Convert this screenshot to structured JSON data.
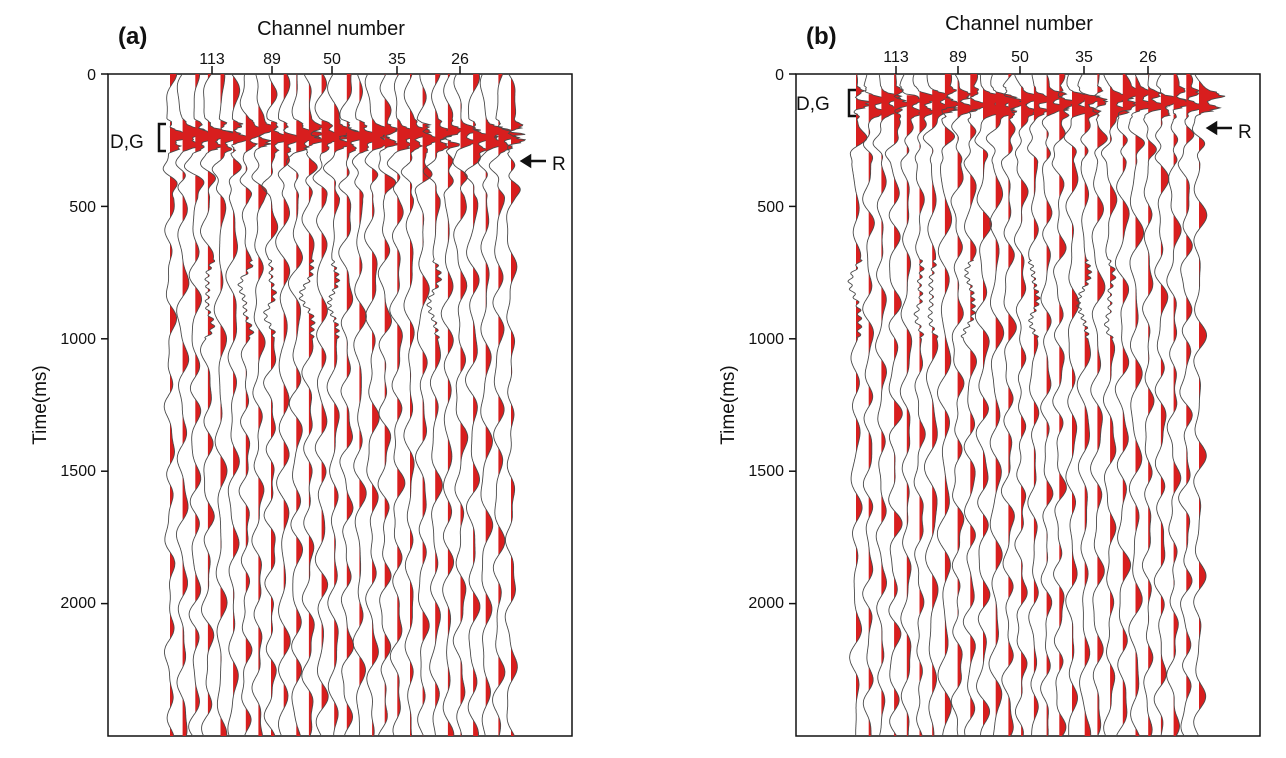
{
  "figure": {
    "colors": {
      "fill": "#d81e1e",
      "trace": "#4a4a4a",
      "axis": "#111111",
      "background": "#ffffff"
    }
  },
  "chart_data": [
    {
      "type": "other",
      "panel_label": "(a)",
      "xlabel": "Channel number",
      "ylabel": "Time(ms)",
      "x_ticks": [
        "113",
        "89",
        "50",
        "35",
        "26"
      ],
      "y_ticks": [
        0,
        500,
        1000,
        1500,
        2000
      ],
      "ylim": [
        0,
        2500
      ],
      "y_direction": "down",
      "bracket_label": "D,G",
      "bracket_range_ms": [
        190,
        275
      ],
      "arrow_label": "R",
      "arrow_time_ms": 330,
      "series": [
        {
          "name": "D,G",
          "values": [
            170,
            300
          ]
        },
        {
          "name": "R",
          "values": [
            290,
            470
          ]
        }
      ]
    },
    {
      "type": "other",
      "panel_label": "(b)",
      "xlabel": "Channel number",
      "ylabel": "Time(ms)",
      "x_ticks": [
        "113",
        "89",
        "50",
        "35",
        "26"
      ],
      "y_ticks": [
        0,
        500,
        1000,
        1500,
        2000
      ],
      "ylim": [
        0,
        2500
      ],
      "y_direction": "down",
      "bracket_label": "D,G",
      "bracket_range_ms": [
        55,
        155
      ],
      "arrow_label": "R",
      "arrow_time_ms": 195,
      "series": [
        {
          "name": "D,G",
          "values": [
            45,
            170
          ]
        },
        {
          "name": "R",
          "values": [
            160,
            340
          ]
        }
      ]
    }
  ]
}
